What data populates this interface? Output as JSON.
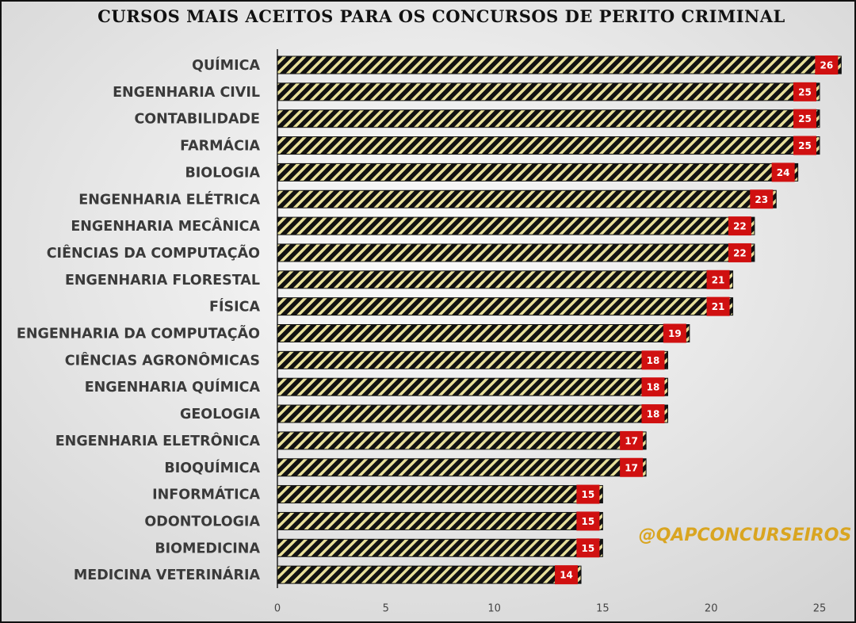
{
  "chart_data": {
    "type": "bar",
    "orientation": "horizontal",
    "title": "CURSOS MAIS ACEITOS PARA OS CONCURSOS DE PERITO CRIMINAL",
    "categories": [
      "QUÍMICA",
      "ENGENHARIA CIVIL",
      "CONTABILIDADE",
      "FARMÁCIA",
      "BIOLOGIA",
      "ENGENHARIA ELÉTRICA",
      "ENGENHARIA MECÂNICA",
      "CIÊNCIAS DA COMPUTAÇÃO",
      "ENGENHARIA FLORESTAL",
      "FÍSICA",
      "ENGENHARIA DA COMPUTAÇÃO",
      "CIÊNCIAS AGRONÔMICAS",
      "ENGENHARIA QUÍMICA",
      "GEOLOGIA",
      "ENGENHARIA ELETRÔNICA",
      "BIOQUÍMICA",
      "INFORMÁTICA",
      "ODONTOLOGIA",
      "BIOMEDICINA",
      "MEDICINA VETERINÁRIA"
    ],
    "values": [
      26,
      25,
      25,
      25,
      24,
      23,
      22,
      22,
      21,
      21,
      19,
      18,
      18,
      18,
      17,
      17,
      15,
      15,
      15,
      14
    ],
    "color": "#111111",
    "stripe_color": "#e8df9a",
    "label_color": "#d01010",
    "xlim": [
      0,
      26
    ],
    "xticks": [
      0,
      5,
      10,
      15,
      20,
      25
    ],
    "grid": false,
    "annotation": "@QAPCONCURSEIROS"
  }
}
